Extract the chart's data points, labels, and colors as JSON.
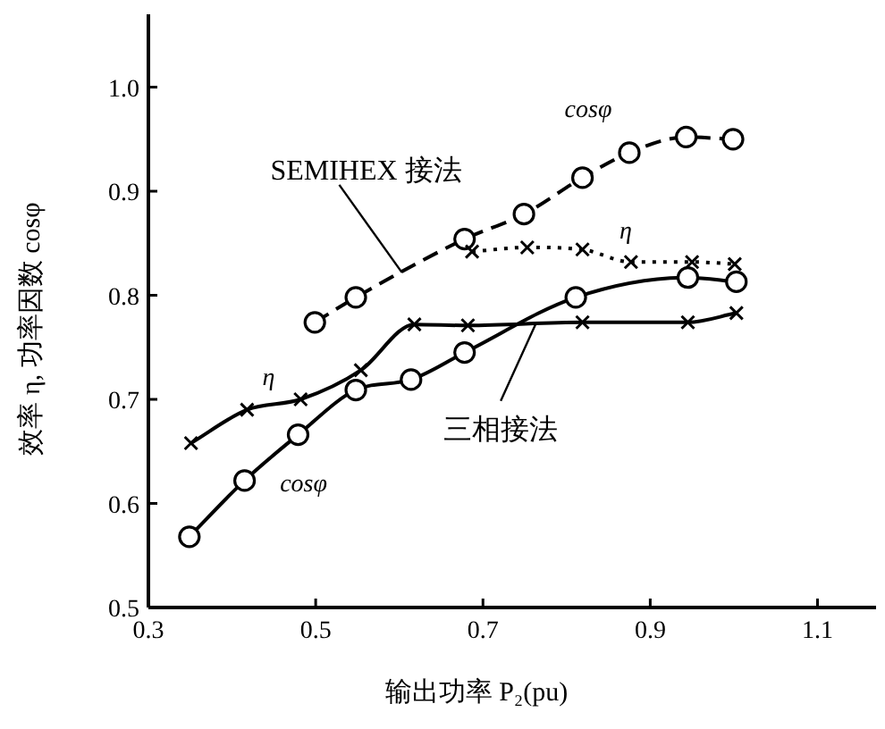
{
  "chart_data": {
    "type": "line",
    "xlabel": "输出功率 P₂(pu)",
    "ylabel": "效率 η, 功率因数 cosφ",
    "xlim": [
      0.3,
      1.17
    ],
    "ylim": [
      0.5,
      1.07
    ],
    "xticks": [
      0.3,
      0.5,
      0.7,
      0.9,
      1.1
    ],
    "yticks": [
      0.5,
      0.6,
      0.7,
      0.8,
      0.9,
      {
        "value": 1.0,
        "label": "1.0"
      }
    ],
    "grid": false,
    "series": [
      {
        "color": "#000000",
        "marker": "circle",
        "line_style": "dashed",
        "x": [
          0.499,
          0.548,
          0.678,
          0.749,
          0.819,
          0.875,
          0.943,
          0.999
        ],
        "values": [
          0.774,
          0.798,
          0.854,
          0.878,
          0.913,
          0.937,
          0.952,
          0.95
        ]
      },
      {
        "color": "#000000",
        "marker": "cross",
        "line_style": "dotted",
        "x": [
          0.687,
          0.753,
          0.819,
          0.877,
          0.95,
          1.001
        ],
        "values": [
          0.842,
          0.846,
          0.844,
          0.832,
          0.832,
          0.83
        ]
      },
      {
        "color": "#000000",
        "marker": "cross",
        "line_style": "solid",
        "x": [
          0.351,
          0.418,
          0.482,
          0.554,
          0.618,
          0.682,
          0.819,
          0.945,
          1.003
        ],
        "values": [
          0.658,
          0.69,
          0.7,
          0.728,
          0.772,
          0.771,
          0.774,
          0.774,
          0.783
        ]
      },
      {
        "color": "#000000",
        "marker": "circle",
        "line_style": "solid",
        "x": [
          0.349,
          0.415,
          0.479,
          0.548,
          0.614,
          0.678,
          0.811,
          0.945,
          1.003
        ],
        "values": [
          0.568,
          0.622,
          0.666,
          0.709,
          0.719,
          0.745,
          0.798,
          0.817,
          0.813
        ]
      }
    ],
    "annotations": [
      {
        "text": "SEMIHEX 接法",
        "x": 0.603,
        "y": 0.822
      },
      {
        "text": "三相接法",
        "x": 0.764,
        "y": 0.774
      },
      {
        "text": "cosφ",
        "x": 0.875,
        "y": 0.937
      },
      {
        "text": "η",
        "x": 0.877,
        "y": 0.832
      },
      {
        "text": "η",
        "x": 0.418,
        "y": 0.69
      },
      {
        "text": "cosφ",
        "x": 0.415,
        "y": 0.622
      }
    ]
  }
}
